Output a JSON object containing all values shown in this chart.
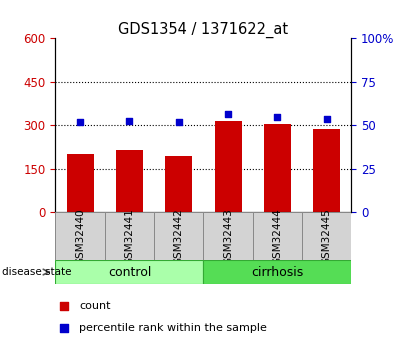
{
  "title": "GDS1354 / 1371622_at",
  "categories": [
    "GSM32440",
    "GSM32441",
    "GSM32442",
    "GSM32443",
    "GSM32444",
    "GSM32445"
  ],
  "bar_values": [
    200,
    215,
    195,
    315,
    303,
    285
  ],
  "scatter_values": [
    51.5,
    52.5,
    51.5,
    56.5,
    54.5,
    53.5
  ],
  "bar_color": "#cc0000",
  "scatter_color": "#0000cc",
  "left_yticks": [
    0,
    150,
    300,
    450,
    600
  ],
  "left_ylim": [
    0,
    600
  ],
  "right_yticks": [
    0,
    25,
    50,
    75,
    100
  ],
  "right_ylim": [
    0,
    100
  ],
  "left_ylabel_color": "#cc0000",
  "right_ylabel_color": "#0000cc",
  "group1_label": "control",
  "group2_label": "cirrhosis",
  "group1_indices": [
    0,
    1,
    2
  ],
  "group2_indices": [
    3,
    4,
    5
  ],
  "group1_color": "#aaffaa",
  "group2_color": "#55dd55",
  "group_border_color": "#33aa33",
  "disease_state_label": "disease state",
  "legend_bar_label": "count",
  "legend_scatter_label": "percentile rank within the sample",
  "grid_color": "#000000",
  "grid_values": [
    150,
    300,
    450
  ],
  "bar_width": 0.55
}
